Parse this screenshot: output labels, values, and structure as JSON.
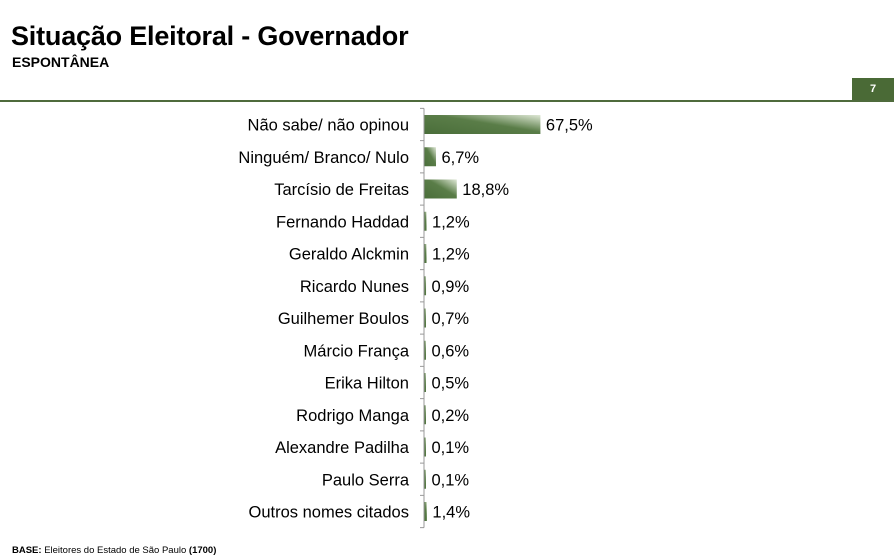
{
  "header": {
    "title": "Situação Eleitoral - Governador",
    "subtitle": "ESPONTÂNEA",
    "page_number": "7"
  },
  "footer": {
    "base_label": "BASE:",
    "base_text": "Eleitores do Estado de São Paulo",
    "base_count": "(1700)"
  },
  "colors": {
    "bar": "#4a6e3a",
    "bar_highlight": "#dfe8d6",
    "accent": "#4a6a36",
    "axis": "#999999"
  },
  "chart_data": {
    "type": "bar",
    "orientation": "horizontal",
    "categories": [
      "Não sabe/ não opinou",
      "Ninguém/ Branco/ Nulo",
      "Tarcísio de Freitas",
      "Fernando Haddad",
      "Geraldo Alckmin",
      "Ricardo Nunes",
      "Guilhemer Boulos",
      "Márcio França",
      "Erika Hilton",
      "Rodrigo Manga",
      "Alexandre Padilha",
      "Paulo Serra",
      "Outros nomes citados"
    ],
    "values": [
      67.5,
      6.7,
      18.8,
      1.2,
      1.2,
      0.9,
      0.7,
      0.6,
      0.5,
      0.2,
      0.1,
      0.1,
      1.4
    ],
    "value_labels": [
      "67,5%",
      "6,7%",
      "18,8%",
      "1,2%",
      "1,2%",
      "0,9%",
      "0,7%",
      "0,6%",
      "0,5%",
      "0,2%",
      "0,1%",
      "0,1%",
      "1,4%"
    ],
    "title": "",
    "xlabel": "",
    "ylabel": "",
    "xlim": [
      0,
      100
    ],
    "grid": false,
    "legend": "none"
  }
}
